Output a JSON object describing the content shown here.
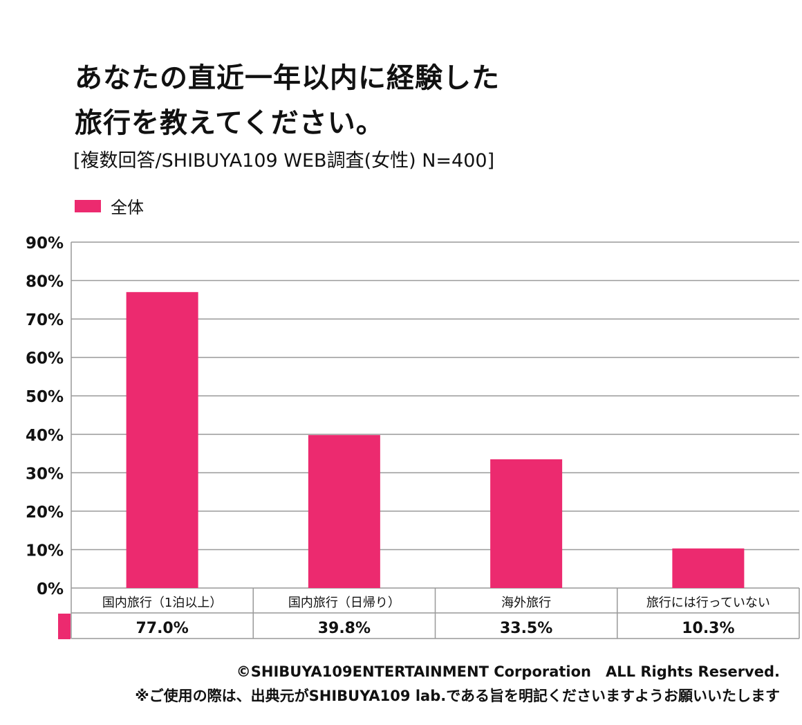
{
  "title_line1": "あなたの直近一年以内に経験した",
  "title_line2": "旅行を教えてください。",
  "subtitle": "[複数回答/SHIBUYA109 WEB調査(女性) N=400]",
  "colors": {
    "bar": "#ec2a6f",
    "grid": "#999999"
  },
  "chart_data": {
    "type": "bar",
    "title": "あなたの直近一年以内に経験した旅行を教えてください。",
    "categories": [
      "国内旅行（1泊以上）",
      "国内旅行（日帰り）",
      "海外旅行",
      "旅行には行っていない"
    ],
    "series": [
      {
        "name": "全体",
        "values": [
          77.0,
          39.8,
          33.5,
          10.3
        ]
      }
    ],
    "value_labels": [
      "77.0%",
      "39.8%",
      "33.5%",
      "10.3%"
    ],
    "ylim": [
      0,
      90
    ],
    "yticks": [
      "0%",
      "10%",
      "20%",
      "30%",
      "40%",
      "50%",
      "60%",
      "70%",
      "80%",
      "90%"
    ],
    "grid": true,
    "legend": "top-left"
  },
  "footer": {
    "copyright": "©SHIBUYA109ENTERTAINMENT Corporation　ALL Rights Reserved.",
    "note": "※ご使用の際は、出典元がSHIBUYA109 lab.である旨を明記くださいますようお願いいたします"
  }
}
